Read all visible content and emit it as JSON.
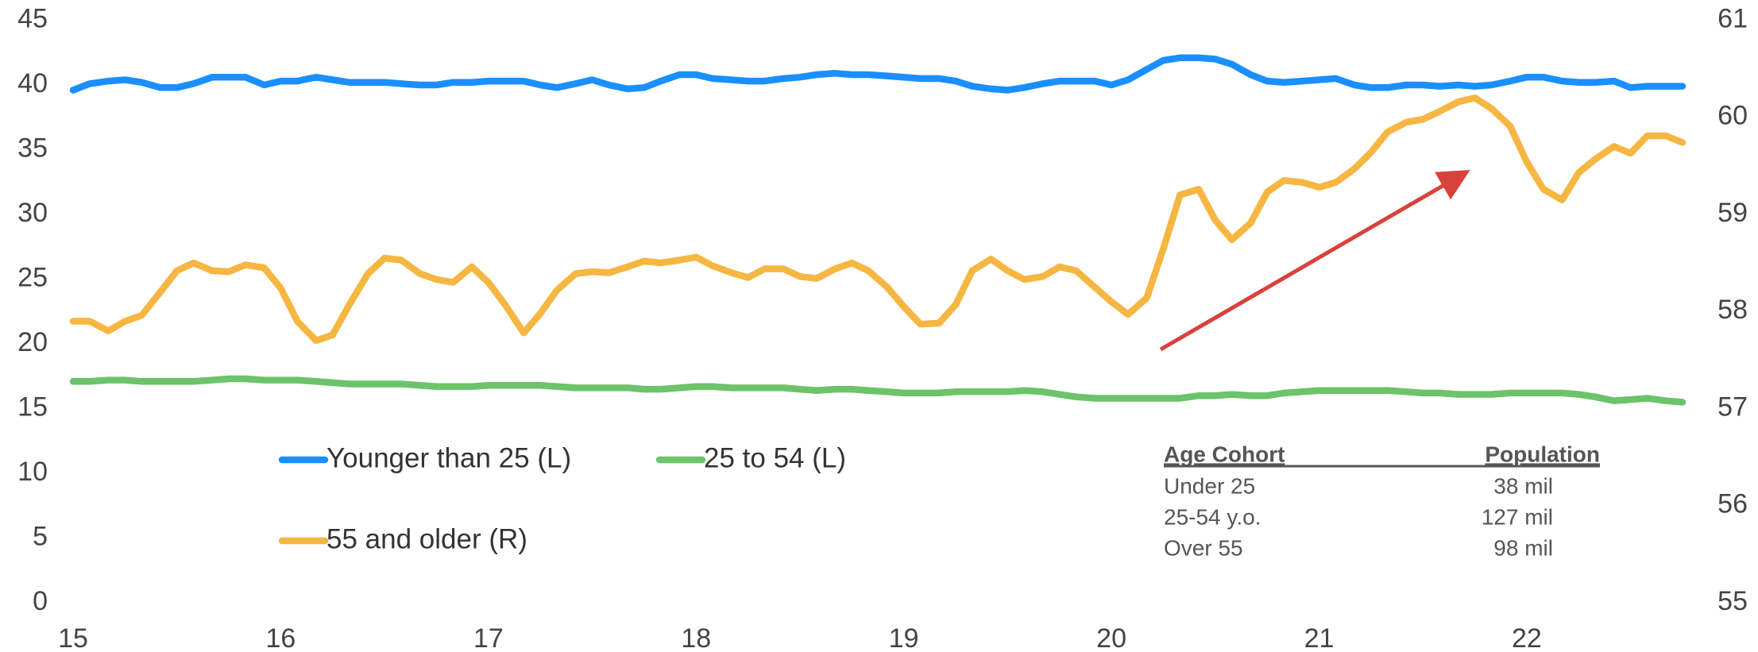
{
  "chart_data": {
    "type": "line",
    "x": [
      15,
      15.08,
      15.17,
      15.25,
      15.33,
      15.42,
      15.5,
      15.58,
      15.67,
      15.75,
      15.83,
      15.92,
      16,
      16.08,
      16.17,
      16.25,
      16.33,
      16.42,
      16.5,
      16.58,
      16.67,
      16.75,
      16.83,
      16.92,
      17,
      17.08,
      17.17,
      17.25,
      17.33,
      17.42,
      17.5,
      17.58,
      17.67,
      17.75,
      17.83,
      17.92,
      18,
      18.08,
      18.17,
      18.25,
      18.33,
      18.42,
      18.5,
      18.58,
      18.67,
      18.75,
      18.83,
      18.92,
      19,
      19.08,
      19.17,
      19.25,
      19.33,
      19.42,
      19.5,
      19.58,
      19.67,
      19.75,
      19.83,
      19.92,
      20,
      20.08,
      20.17,
      20.25,
      20.33,
      20.42,
      20.5,
      20.58,
      20.67,
      20.75,
      20.83,
      20.92,
      21,
      21.08,
      21.17,
      21.25,
      21.33,
      21.42,
      21.5,
      21.58,
      21.67,
      21.75,
      21.83,
      21.92,
      22,
      22.08,
      22.17,
      22.25,
      22.33,
      22.42,
      22.5,
      22.58,
      22.67,
      22.75
    ],
    "series": [
      {
        "name": "Younger than 25 (L)",
        "color": "#1a8fff",
        "axis": "y",
        "values": [
          39.6,
          40.1,
          40.3,
          40.4,
          40.2,
          39.8,
          39.8,
          40.1,
          40.6,
          40.6,
          40.6,
          40.0,
          40.3,
          40.3,
          40.6,
          40.4,
          40.2,
          40.2,
          40.2,
          40.1,
          40.0,
          40.0,
          40.2,
          40.2,
          40.3,
          40.3,
          40.3,
          40.0,
          39.8,
          40.1,
          40.4,
          40.0,
          39.7,
          39.8,
          40.3,
          40.8,
          40.8,
          40.5,
          40.4,
          40.3,
          40.3,
          40.5,
          40.6,
          40.8,
          40.9,
          40.8,
          40.8,
          40.7,
          40.6,
          40.5,
          40.5,
          40.3,
          39.9,
          39.7,
          39.6,
          39.8,
          40.1,
          40.3,
          40.3,
          40.3,
          40.0,
          40.4,
          41.2,
          41.9,
          42.1,
          42.1,
          42.0,
          41.6,
          40.8,
          40.3,
          40.2,
          40.3,
          40.4,
          40.5,
          40.0,
          39.8,
          39.8,
          40.0,
          40.0,
          39.9,
          40.0,
          39.9,
          40.0,
          40.3,
          40.6,
          40.6,
          40.3,
          40.2,
          40.2,
          40.3,
          39.8,
          39.9,
          39.9,
          39.9
        ]
      },
      {
        "name": "25 to 54 (L)",
        "color": "#6cc36a",
        "axis": "y",
        "values": [
          17.1,
          17.1,
          17.2,
          17.2,
          17.1,
          17.1,
          17.1,
          17.1,
          17.2,
          17.3,
          17.3,
          17.2,
          17.2,
          17.2,
          17.1,
          17.0,
          16.9,
          16.9,
          16.9,
          16.9,
          16.8,
          16.7,
          16.7,
          16.7,
          16.8,
          16.8,
          16.8,
          16.8,
          16.7,
          16.6,
          16.6,
          16.6,
          16.6,
          16.5,
          16.5,
          16.6,
          16.7,
          16.7,
          16.6,
          16.6,
          16.6,
          16.6,
          16.5,
          16.4,
          16.5,
          16.5,
          16.4,
          16.3,
          16.2,
          16.2,
          16.2,
          16.3,
          16.3,
          16.3,
          16.3,
          16.4,
          16.3,
          16.1,
          15.9,
          15.8,
          15.8,
          15.8,
          15.8,
          15.8,
          15.8,
          16.0,
          16.0,
          16.1,
          16.0,
          16.0,
          16.2,
          16.3,
          16.4,
          16.4,
          16.4,
          16.4,
          16.4,
          16.3,
          16.2,
          16.2,
          16.1,
          16.1,
          16.1,
          16.2,
          16.2,
          16.2,
          16.2,
          16.1,
          15.9,
          15.6,
          15.7,
          15.8,
          15.6,
          15.5
        ]
      },
      {
        "name": "55 and older (R)",
        "color": "#f5b642",
        "axis": "y2",
        "values": [
          57.9,
          57.9,
          57.8,
          57.9,
          57.96,
          58.2,
          58.42,
          58.5,
          58.42,
          58.41,
          58.48,
          58.45,
          58.24,
          57.9,
          57.7,
          57.76,
          58.07,
          58.39,
          58.55,
          58.53,
          58.39,
          58.33,
          58.3,
          58.46,
          58.3,
          58.07,
          57.78,
          57.98,
          58.22,
          58.39,
          58.41,
          58.4,
          58.46,
          58.52,
          58.5,
          58.53,
          58.56,
          58.47,
          58.4,
          58.35,
          58.44,
          58.44,
          58.36,
          58.34,
          58.44,
          58.5,
          58.42,
          58.25,
          58.05,
          57.87,
          57.88,
          58.07,
          58.42,
          58.54,
          58.42,
          58.33,
          58.36,
          58.46,
          58.42,
          58.25,
          58.1,
          57.97,
          58.14,
          58.65,
          59.2,
          59.26,
          58.94,
          58.74,
          58.91,
          59.23,
          59.35,
          59.33,
          59.28,
          59.33,
          59.47,
          59.64,
          59.85,
          59.95,
          59.98,
          60.06,
          60.16,
          60.2,
          60.09,
          59.91,
          59.54,
          59.26,
          59.15,
          59.43,
          59.57,
          59.7,
          59.63,
          59.81,
          59.81,
          59.74
        ]
      }
    ],
    "xlim": [
      15,
      22.75
    ],
    "xticks": [
      15,
      16,
      17,
      18,
      19,
      20,
      21,
      22
    ],
    "ylim": [
      0,
      45
    ],
    "yticks": [
      0,
      5,
      10,
      15,
      20,
      25,
      30,
      35,
      40,
      45
    ],
    "y2lim": [
      55,
      61
    ],
    "y2ticks": [
      55,
      56,
      57,
      58,
      59,
      60,
      61
    ],
    "grid": false,
    "table": {
      "header": [
        "Age Cohort",
        "Population"
      ],
      "rows": [
        [
          "Under 25",
          "38 mil"
        ],
        [
          "25-54 y.o.",
          "127 mil"
        ],
        [
          "Over 55",
          "98 mil"
        ]
      ]
    }
  }
}
